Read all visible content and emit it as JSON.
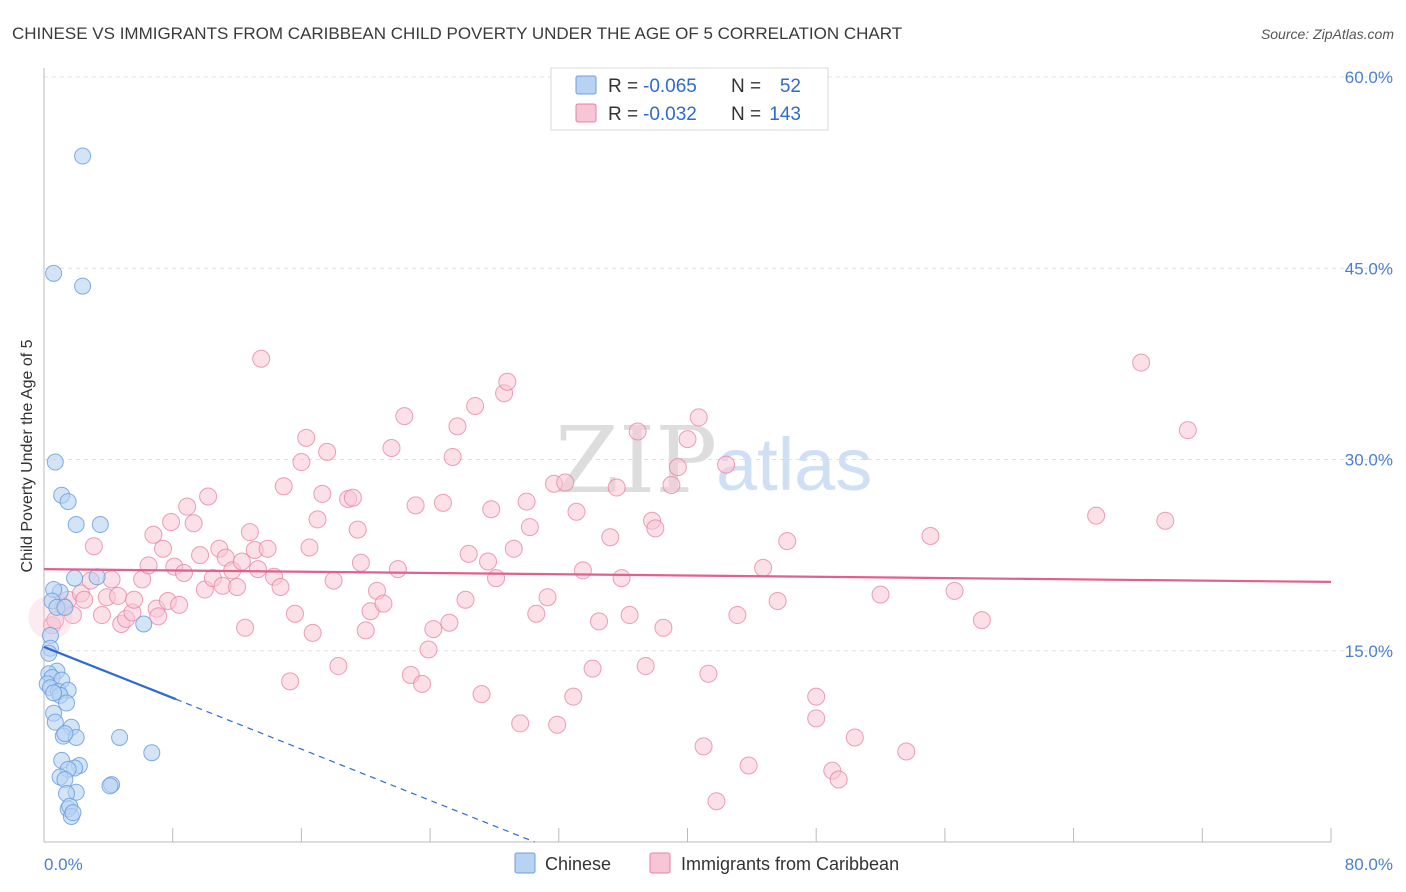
{
  "header": {
    "title": "CHINESE VS IMMIGRANTS FROM CARIBBEAN CHILD POVERTY UNDER THE AGE OF 5 CORRELATION CHART",
    "source": "Source: ZipAtlas.com"
  },
  "watermark": {
    "zip": "ZIP",
    "atlas": "atlas"
  },
  "colors": {
    "chinese": "#6a9fe0",
    "chinese_fill": "#b8d2f2",
    "chinese_line": "#2f6ad0",
    "caribbean": "#e87fa3",
    "caribbean_fill": "#f7c6d6",
    "caribbean_line": "#e0608e",
    "tick_text": "#4a7fd0",
    "grid": "#e0e0e0"
  },
  "legend": {
    "rows": [
      {
        "r_label": "R = ",
        "r_value": "-0.065",
        "n_label": "N = ",
        "n_value": "52"
      },
      {
        "r_label": "R = ",
        "r_value": "-0.032",
        "n_label": "N = ",
        "n_value": "143"
      }
    ]
  },
  "bottom_legend": [
    "Chinese",
    "Immigrants from Caribbean"
  ],
  "chart_data": {
    "type": "scatter",
    "title": "CHINESE VS IMMIGRANTS FROM CARIBBEAN CHILD POVERTY UNDER THE AGE OF 5 CORRELATION CHART",
    "xlabel": "",
    "ylabel": "Child Poverty Under the Age of 5",
    "xlim": [
      0,
      80
    ],
    "ylim": [
      0,
      60
    ],
    "x_tick_labels": [
      "0.0%",
      "80.0%"
    ],
    "y_ticks": [
      15,
      30,
      45,
      60
    ],
    "y_tick_labels": [
      "15.0%",
      "30.0%",
      "45.0%",
      "60.0%"
    ],
    "grid": true,
    "legend_position": "top-center",
    "series": [
      {
        "name": "Chinese",
        "r": -0.065,
        "n": 52,
        "trend": {
          "x": [
            0,
            8.2
          ],
          "y": [
            15.3,
            11.2
          ],
          "dashed_to": [
            30.5,
            0
          ]
        },
        "points": [
          [
            2.4,
            53.8
          ],
          [
            0.6,
            44.6
          ],
          [
            2.4,
            43.6
          ],
          [
            0.7,
            29.8
          ],
          [
            1.1,
            27.2
          ],
          [
            1.5,
            26.7
          ],
          [
            2.0,
            24.9
          ],
          [
            3.5,
            24.9
          ],
          [
            1.9,
            20.7
          ],
          [
            3.3,
            20.8
          ],
          [
            1.0,
            19.6
          ],
          [
            0.6,
            19.8
          ],
          [
            0.5,
            18.9
          ],
          [
            0.8,
            18.4
          ],
          [
            1.3,
            18.4
          ],
          [
            6.2,
            17.1
          ],
          [
            0.4,
            16.2
          ],
          [
            0.4,
            15.2
          ],
          [
            0.3,
            14.8
          ],
          [
            0.8,
            13.4
          ],
          [
            0.3,
            13.2
          ],
          [
            0.5,
            12.9
          ],
          [
            1.1,
            12.7
          ],
          [
            0.2,
            12.4
          ],
          [
            0.4,
            12.1
          ],
          [
            0.9,
            11.8
          ],
          [
            1.5,
            11.9
          ],
          [
            1.0,
            11.5
          ],
          [
            0.6,
            11.7
          ],
          [
            1.4,
            10.9
          ],
          [
            0.6,
            10.1
          ],
          [
            1.7,
            9.0
          ],
          [
            0.7,
            9.4
          ],
          [
            1.2,
            8.3
          ],
          [
            2.0,
            8.2
          ],
          [
            1.3,
            8.5
          ],
          [
            4.7,
            8.2
          ],
          [
            6.7,
            7.0
          ],
          [
            1.1,
            6.4
          ],
          [
            2.2,
            6.0
          ],
          [
            1.9,
            5.8
          ],
          [
            1.5,
            5.7
          ],
          [
            1.0,
            5.1
          ],
          [
            1.3,
            4.9
          ],
          [
            4.2,
            4.5
          ],
          [
            4.1,
            4.4
          ],
          [
            2.0,
            3.9
          ],
          [
            1.4,
            3.8
          ],
          [
            1.5,
            2.6
          ],
          [
            1.6,
            2.8
          ],
          [
            1.7,
            2.0
          ],
          [
            1.8,
            2.3
          ]
        ]
      },
      {
        "name": "Immigrants from Caribbean",
        "r": -0.032,
        "n": 143,
        "trend": {
          "x": [
            0,
            80
          ],
          "y": [
            21.4,
            20.4
          ]
        },
        "points": [
          [
            0.5,
            17.0
          ],
          [
            0.7,
            17.4
          ],
          [
            1.2,
            18.5
          ],
          [
            1.5,
            19.0
          ],
          [
            1.8,
            17.8
          ],
          [
            2.3,
            19.5
          ],
          [
            2.5,
            19.0
          ],
          [
            2.9,
            20.5
          ],
          [
            3.1,
            23.2
          ],
          [
            3.6,
            17.8
          ],
          [
            3.9,
            19.2
          ],
          [
            4.2,
            20.6
          ],
          [
            4.6,
            19.3
          ],
          [
            4.8,
            17.1
          ],
          [
            5.1,
            17.5
          ],
          [
            5.5,
            18.0
          ],
          [
            5.6,
            19.0
          ],
          [
            6.1,
            20.6
          ],
          [
            6.5,
            21.7
          ],
          [
            6.8,
            24.1
          ],
          [
            7.0,
            18.3
          ],
          [
            7.1,
            17.7
          ],
          [
            7.4,
            23.0
          ],
          [
            7.7,
            18.9
          ],
          [
            7.9,
            25.1
          ],
          [
            8.1,
            21.6
          ],
          [
            8.4,
            18.6
          ],
          [
            8.7,
            21.1
          ],
          [
            8.9,
            26.3
          ],
          [
            9.3,
            25.0
          ],
          [
            9.7,
            22.5
          ],
          [
            10.0,
            19.8
          ],
          [
            10.2,
            27.1
          ],
          [
            10.5,
            20.7
          ],
          [
            10.9,
            23.0
          ],
          [
            11.1,
            20.1
          ],
          [
            11.3,
            22.3
          ],
          [
            11.7,
            21.3
          ],
          [
            12.0,
            20.0
          ],
          [
            12.3,
            22.0
          ],
          [
            12.5,
            16.8
          ],
          [
            12.8,
            24.3
          ],
          [
            13.1,
            22.9
          ],
          [
            13.3,
            21.4
          ],
          [
            13.5,
            37.9
          ],
          [
            13.9,
            23.0
          ],
          [
            14.3,
            20.8
          ],
          [
            14.7,
            20.0
          ],
          [
            14.9,
            27.9
          ],
          [
            15.3,
            12.6
          ],
          [
            15.6,
            17.9
          ],
          [
            16.0,
            29.8
          ],
          [
            16.3,
            31.7
          ],
          [
            16.5,
            23.1
          ],
          [
            16.7,
            16.4
          ],
          [
            17.0,
            25.3
          ],
          [
            17.3,
            27.3
          ],
          [
            17.6,
            30.6
          ],
          [
            18.0,
            20.5
          ],
          [
            18.3,
            13.8
          ],
          [
            18.9,
            26.9
          ],
          [
            19.2,
            27.0
          ],
          [
            19.5,
            24.5
          ],
          [
            19.7,
            21.9
          ],
          [
            20.0,
            16.6
          ],
          [
            20.3,
            18.1
          ],
          [
            20.7,
            19.7
          ],
          [
            21.1,
            18.7
          ],
          [
            21.6,
            30.9
          ],
          [
            22.0,
            21.4
          ],
          [
            22.4,
            33.4
          ],
          [
            22.8,
            13.1
          ],
          [
            23.1,
            26.4
          ],
          [
            23.5,
            12.4
          ],
          [
            23.9,
            15.1
          ],
          [
            24.2,
            16.7
          ],
          [
            24.8,
            26.6
          ],
          [
            25.2,
            17.2
          ],
          [
            25.4,
            30.2
          ],
          [
            25.7,
            32.6
          ],
          [
            26.4,
            22.6
          ],
          [
            26.2,
            19.0
          ],
          [
            26.8,
            34.2
          ],
          [
            27.2,
            11.6
          ],
          [
            27.6,
            22.0
          ],
          [
            27.8,
            26.1
          ],
          [
            28.1,
            20.7
          ],
          [
            28.6,
            35.2
          ],
          [
            28.8,
            36.1
          ],
          [
            29.2,
            23.0
          ],
          [
            29.6,
            9.3
          ],
          [
            30.0,
            26.7
          ],
          [
            30.2,
            24.7
          ],
          [
            30.6,
            17.9
          ],
          [
            31.3,
            19.2
          ],
          [
            31.7,
            28.1
          ],
          [
            31.9,
            9.2
          ],
          [
            32.4,
            28.2
          ],
          [
            32.9,
            11.4
          ],
          [
            33.1,
            25.9
          ],
          [
            33.5,
            21.3
          ],
          [
            34.1,
            13.6
          ],
          [
            34.5,
            17.3
          ],
          [
            35.2,
            23.9
          ],
          [
            35.6,
            27.8
          ],
          [
            35.9,
            20.7
          ],
          [
            36.4,
            17.8
          ],
          [
            36.9,
            32.2
          ],
          [
            37.4,
            13.8
          ],
          [
            37.8,
            25.2
          ],
          [
            38.0,
            24.6
          ],
          [
            38.5,
            16.8
          ],
          [
            39.0,
            28.0
          ],
          [
            39.4,
            29.4
          ],
          [
            40.0,
            31.6
          ],
          [
            40.7,
            33.3
          ],
          [
            41.0,
            7.5
          ],
          [
            41.3,
            13.2
          ],
          [
            41.8,
            3.2
          ],
          [
            42.4,
            29.6
          ],
          [
            43.1,
            17.8
          ],
          [
            43.8,
            6.0
          ],
          [
            44.7,
            21.5
          ],
          [
            45.6,
            18.9
          ],
          [
            46.2,
            23.6
          ],
          [
            48.0,
            11.4
          ],
          [
            48.0,
            9.7
          ],
          [
            49.0,
            5.6
          ],
          [
            49.4,
            4.9
          ],
          [
            50.4,
            8.2
          ],
          [
            52.0,
            19.4
          ],
          [
            53.6,
            7.1
          ],
          [
            55.1,
            24.0
          ],
          [
            56.6,
            19.7
          ],
          [
            58.3,
            17.4
          ],
          [
            65.4,
            25.6
          ],
          [
            68.2,
            37.6
          ],
          [
            69.7,
            25.2
          ],
          [
            71.1,
            32.3
          ]
        ]
      }
    ]
  }
}
